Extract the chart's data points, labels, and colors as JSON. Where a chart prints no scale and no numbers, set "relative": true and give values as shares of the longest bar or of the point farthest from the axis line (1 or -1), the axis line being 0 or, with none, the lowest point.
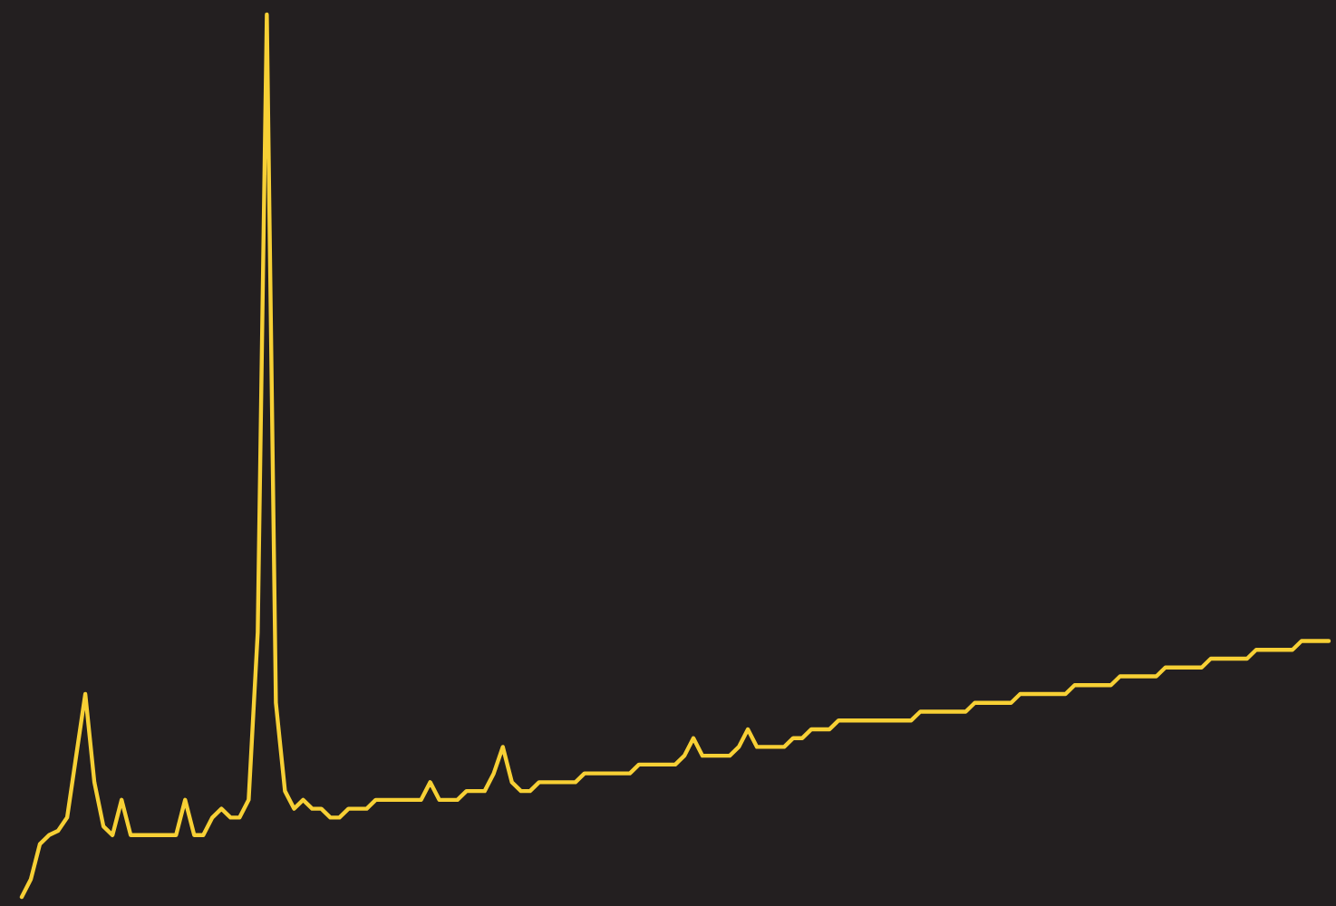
{
  "chart_data": {
    "type": "line",
    "relative": true,
    "marker": "none",
    "line_style": "solid",
    "categories": [
      null,
      null,
      null,
      null,
      null,
      null,
      null,
      null,
      null,
      null,
      null,
      null,
      null,
      null,
      null,
      null,
      null,
      null,
      null,
      null,
      null,
      null,
      null,
      null,
      null,
      null,
      null,
      null,
      null,
      null,
      null,
      null,
      null,
      null,
      null,
      null,
      null,
      null,
      null,
      null,
      null,
      null,
      null,
      null,
      null,
      null,
      null,
      null,
      null,
      null,
      null,
      null,
      null,
      null,
      null,
      null,
      null,
      null,
      null,
      null,
      null,
      null,
      null,
      null,
      null,
      null,
      null,
      null,
      null,
      null,
      null,
      null,
      null,
      null,
      null,
      null,
      null,
      null,
      null,
      null,
      null,
      null,
      null,
      null,
      null,
      null,
      null,
      null,
      null,
      null,
      null,
      null,
      null,
      null,
      null,
      null,
      null,
      null,
      null,
      null,
      null,
      null,
      null,
      null,
      null,
      null,
      null,
      null,
      null,
      null,
      null,
      null,
      null,
      null,
      null,
      null,
      null,
      null,
      null,
      null,
      null,
      null,
      null,
      null,
      null,
      null,
      null,
      null,
      null,
      null,
      null,
      null,
      null,
      null,
      null,
      null,
      null,
      null,
      null,
      null,
      null,
      null,
      null,
      null,
      null
    ],
    "series": [
      {
        "color": "#f7d035",
        "values": [
          0,
          0.02,
          0.06,
          0.07,
          0.075,
          0.09,
          0.16,
          0.23,
          0.13,
          0.08,
          0.07,
          0.11,
          0.07,
          0.07,
          0.07,
          0.07,
          0.07,
          0.07,
          0.11,
          0.07,
          0.07,
          0.09,
          0.1,
          0.09,
          0.09,
          0.11,
          0.3,
          1,
          0.22,
          0.12,
          0.1,
          0.11,
          0.1,
          0.1,
          0.09,
          0.09,
          0.1,
          0.1,
          0.1,
          0.11,
          0.11,
          0.11,
          0.11,
          0.11,
          0.11,
          0.13,
          0.11,
          0.11,
          0.11,
          0.12,
          0.12,
          0.12,
          0.14,
          0.17,
          0.13,
          0.12,
          0.12,
          0.13,
          0.13,
          0.13,
          0.13,
          0.13,
          0.14,
          0.14,
          0.14,
          0.14,
          0.14,
          0.14,
          0.15,
          0.15,
          0.15,
          0.15,
          0.15,
          0.16,
          0.18,
          0.16,
          0.16,
          0.16,
          0.16,
          0.17,
          0.19,
          0.17,
          0.17,
          0.17,
          0.17,
          0.18,
          0.18,
          0.19,
          0.19,
          0.19,
          0.2,
          0.2,
          0.2,
          0.2,
          0.2,
          0.2,
          0.2,
          0.2,
          0.2,
          0.21,
          0.21,
          0.21,
          0.21,
          0.21,
          0.21,
          0.22,
          0.22,
          0.22,
          0.22,
          0.22,
          0.23,
          0.23,
          0.23,
          0.23,
          0.23,
          0.23,
          0.24,
          0.24,
          0.24,
          0.24,
          0.24,
          0.25,
          0.25,
          0.25,
          0.25,
          0.25,
          0.26,
          0.26,
          0.26,
          0.26,
          0.26,
          0.27,
          0.27,
          0.27,
          0.27,
          0.27,
          0.28,
          0.28,
          0.28,
          0.28,
          0.28,
          0.29,
          0.29,
          0.29,
          0.29
        ]
      }
    ]
  }
}
